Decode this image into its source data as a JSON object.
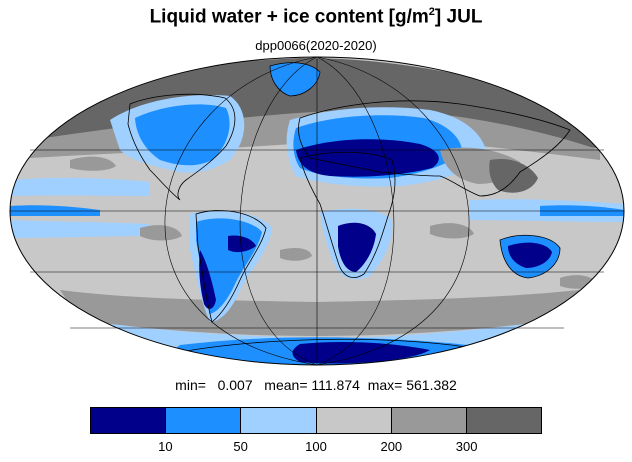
{
  "title": {
    "main": "Liquid water + ice content [g/m",
    "superscript": "2",
    "suffix": "] JUL"
  },
  "subtitle": "dpp0066(2020-2020)",
  "stats": {
    "min_label": "min=",
    "min_value": "0.007",
    "mean_label": "mean=",
    "mean_value": "111.874",
    "max_label": "max=",
    "max_value": "561.382"
  },
  "colorbar": {
    "colors": [
      "#00008b",
      "#1e8fff",
      "#a0d0ff",
      "#c8c8c8",
      "#999999",
      "#666666"
    ],
    "ticks": [
      "10",
      "50",
      "100",
      "200",
      "300"
    ]
  },
  "map": {
    "projection": "Mollweide",
    "ocean_color": "#c8c8c8",
    "coastline_color": "#000000"
  }
}
